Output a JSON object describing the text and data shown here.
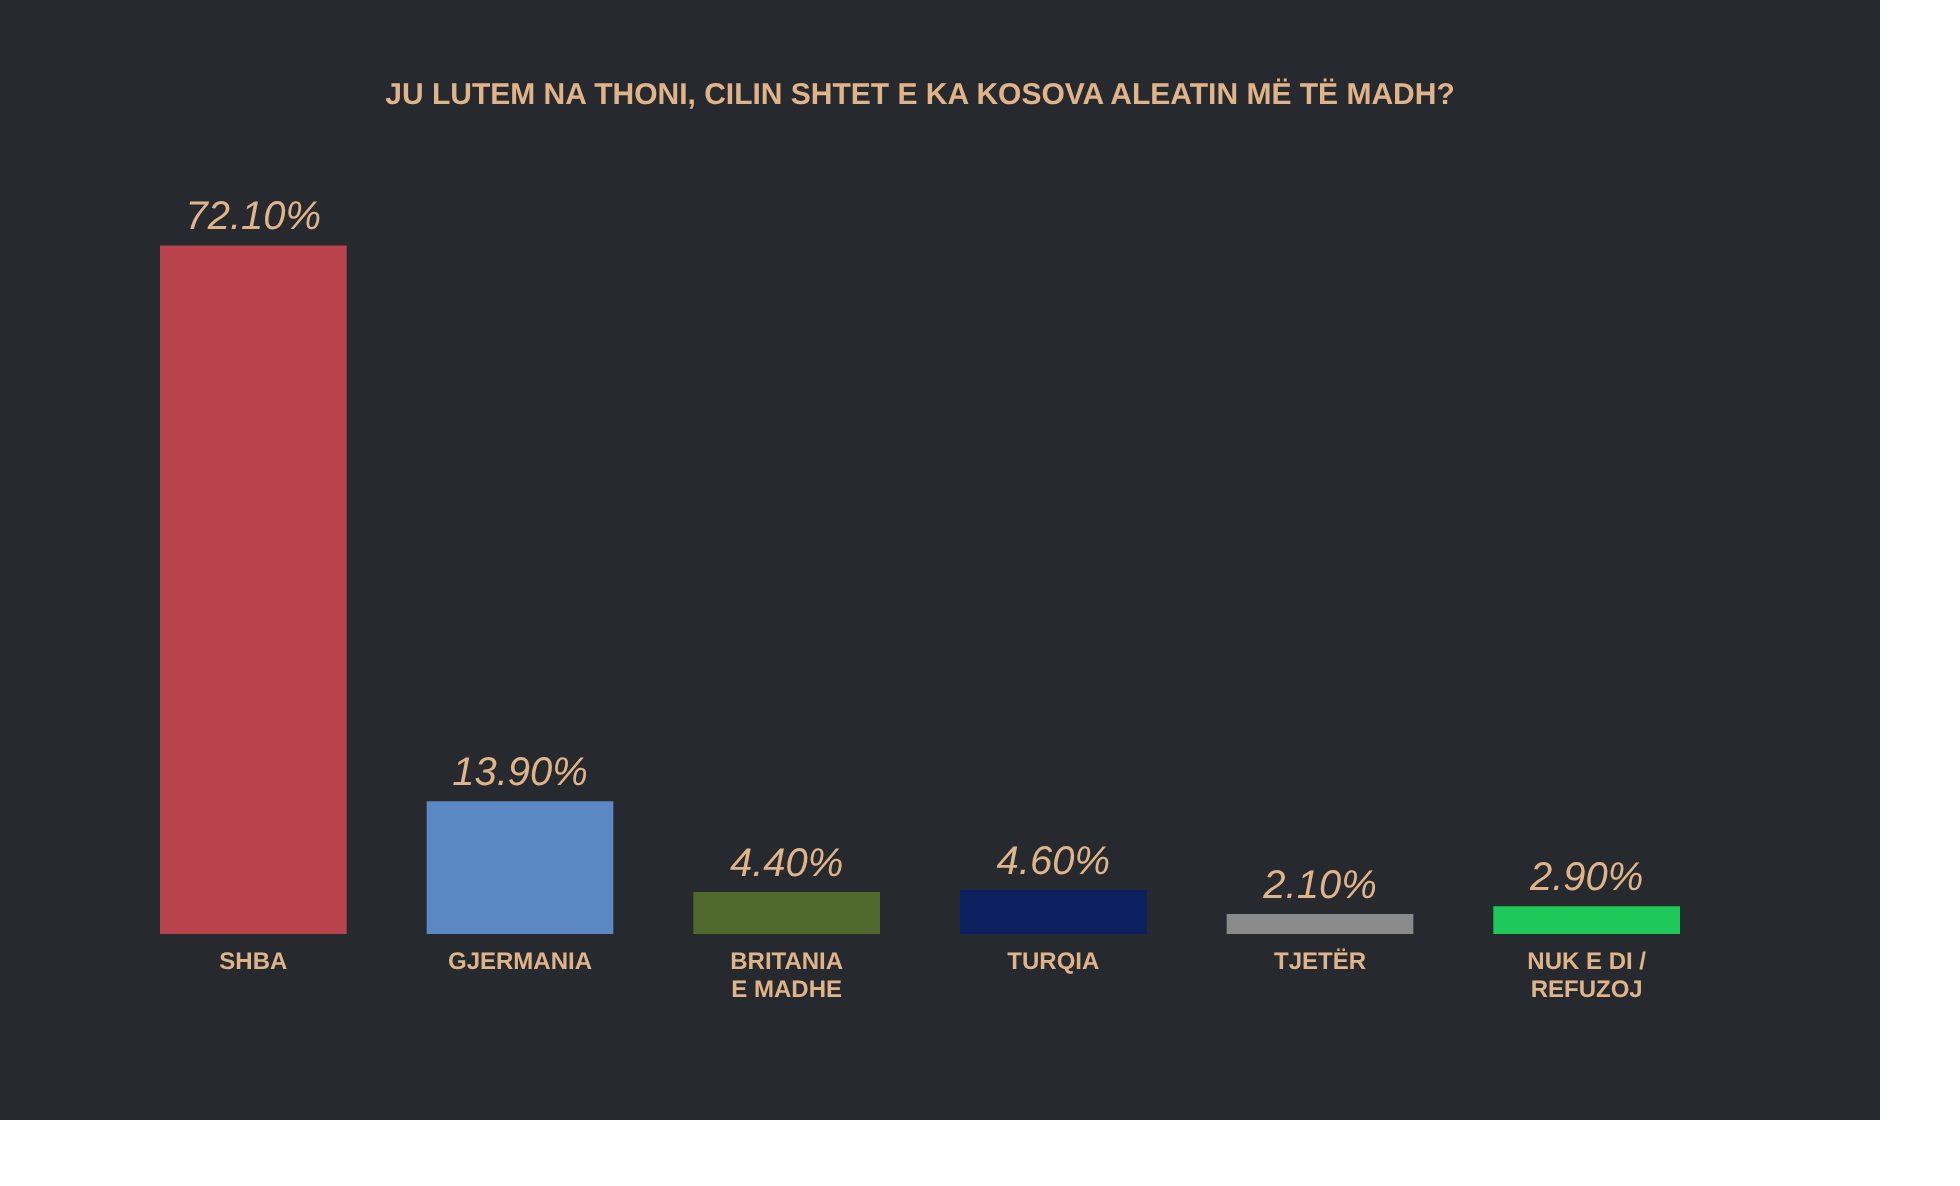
{
  "chart_data": {
    "type": "bar",
    "title": "JU LUTEM NA THONI, CILIN SHTET E KA KOSOVA ALEATIN MË TË MADH?",
    "categories": [
      "SHBA",
      "GJERMANIA",
      "BRITANIA\nE MADHE",
      "TURQIA",
      "TJETËR",
      "NUK E DI /\nREFUZOJ"
    ],
    "values": [
      72.1,
      13.9,
      4.4,
      4.6,
      2.1,
      2.9
    ],
    "colors": [
      "#b9434c",
      "#5b87c5",
      "#4f6a2c",
      "#0c2060",
      "#8a8a8a",
      "#1ec95a"
    ],
    "value_labels": [
      "72.10%",
      "13.90%",
      "4.40%",
      "4.60%",
      "2.10%",
      "2.90%"
    ],
    "grid": false,
    "tick_labels": "x"
  }
}
